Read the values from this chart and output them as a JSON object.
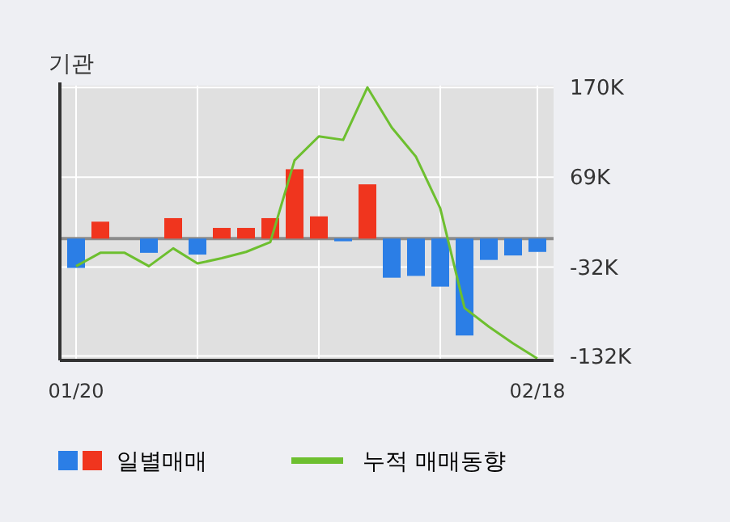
{
  "chart_data": {
    "type": "bar",
    "title": "기관",
    "categories": [
      "01/20",
      null,
      null,
      null,
      null,
      null,
      null,
      null,
      null,
      null,
      null,
      null,
      null,
      null,
      null,
      null,
      null,
      null,
      null,
      "02/18"
    ],
    "series": [
      {
        "name": "일별매매",
        "values": [
          -33,
          19,
          0,
          -16,
          23,
          -18,
          12,
          12,
          23,
          78,
          25,
          -3,
          61,
          -44,
          -42,
          -54,
          -109,
          -24,
          -19,
          -15
        ],
        "colors": [
          "#2b7ee6",
          "#f0351e",
          "#f0351e",
          "#2b7ee6",
          "#f0351e",
          "#2b7ee6",
          "#f0351e",
          "#f0351e",
          "#f0351e",
          "#f0351e",
          "#f0351e",
          "#2b7ee6",
          "#f0351e",
          "#2b7ee6",
          "#2b7ee6",
          "#2b7ee6",
          "#2b7ee6",
          "#2b7ee6",
          "#2b7ee6",
          "#2b7ee6"
        ]
      },
      {
        "name": "누적 매매동향",
        "type": "line",
        "color": "#6dbf2f",
        "values": [
          -31,
          -16,
          -16,
          -31,
          -11,
          -28,
          -22,
          -15,
          -4,
          88,
          115,
          111,
          170,
          125,
          92,
          34,
          -78,
          -99,
          -118,
          -135
        ]
      }
    ],
    "ylim": [
      -137,
      172
    ],
    "yticks": [
      {
        "value": 170,
        "label": "170K"
      },
      {
        "value": 69,
        "label": "69K"
      },
      {
        "value": -32,
        "label": "-32K"
      },
      {
        "value": -132,
        "label": "-132K"
      }
    ],
    "grid": true,
    "legend": "bottom",
    "marker": "none",
    "ref_lines": [
      {
        "axis": "y",
        "value": 0,
        "color": "#8c8c8c"
      }
    ]
  }
}
